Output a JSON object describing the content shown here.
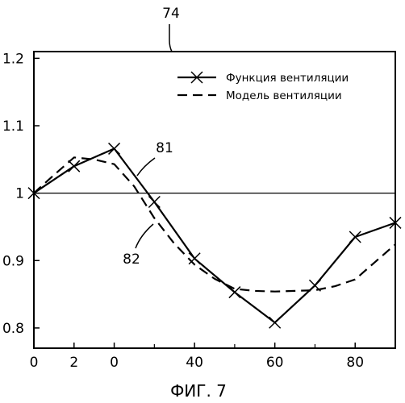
{
  "chart_data": {
    "type": "line",
    "figure_caption": "ФИГ. 7",
    "annotations": {
      "ref_74": "74",
      "ref_81": "81",
      "ref_82": "82"
    },
    "x_tick_labels": [
      "0",
      "2",
      "0",
      "40",
      "60",
      "80"
    ],
    "y_tick_labels": [
      "0.8",
      "0.9",
      "1",
      "1.1",
      "1.2"
    ],
    "y_ticks": [
      0.8,
      0.9,
      1.0,
      1.1,
      1.2
    ],
    "ylim": [
      0.77,
      1.21
    ],
    "reference_line_y": 1.0,
    "legend": {
      "placement": "top-right"
    },
    "series": [
      {
        "name": "Функция вентиляции",
        "style": "solid-with-x-markers",
        "x": [
          0,
          10,
          20,
          30,
          40,
          50,
          60,
          70,
          80,
          90
        ],
        "y": [
          1.0,
          1.04,
          1.066,
          0.987,
          0.903,
          0.853,
          0.808,
          0.863,
          0.935,
          0.956
        ]
      },
      {
        "name": "Модель вентиляции",
        "style": "dashed",
        "x": [
          0,
          5,
          10,
          15,
          20,
          25,
          30,
          35,
          40,
          45,
          50,
          55,
          60,
          65,
          70,
          75,
          80,
          85,
          90
        ],
        "y": [
          1.0,
          1.027,
          1.053,
          1.05,
          1.043,
          1.01,
          0.963,
          0.925,
          0.894,
          0.873,
          0.858,
          0.855,
          0.854,
          0.855,
          0.856,
          0.862,
          0.872,
          0.898,
          0.924
        ]
      }
    ]
  }
}
